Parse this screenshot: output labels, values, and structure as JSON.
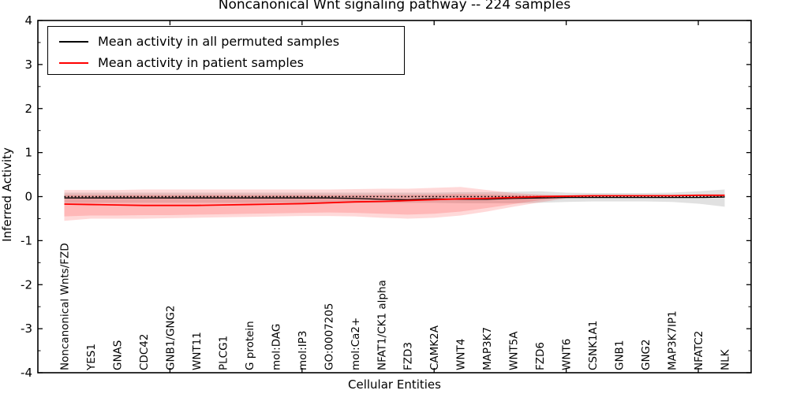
{
  "chart_data": {
    "type": "line",
    "title": "Noncanonical Wnt signaling pathway -- 224 samples",
    "xlabel": "Cellular Entities",
    "ylabel": "Inferred Activity",
    "xlim": [
      0,
      27
    ],
    "ylim": [
      -4,
      4
    ],
    "grid": false,
    "legend_position": "upper left",
    "yticks": [
      4,
      3,
      2,
      1,
      0,
      -1,
      -2,
      -3,
      -4
    ],
    "ytick_labels": [
      "4",
      "3",
      "2",
      "1",
      "0",
      "-1",
      "-2",
      "-3",
      "-4"
    ],
    "xticks": [
      5,
      10,
      15,
      20,
      25
    ],
    "categories": [
      "Noncanonical Wnts/FZD",
      "YES1",
      "GNAS",
      "CDC42",
      "GNB1/GNG2",
      "WNT11",
      "PLCG1",
      "G protein",
      "mol:DAG",
      "mol:IP3",
      "GO:0007205",
      "mol:Ca2+",
      "NFAT1/CK1 alpha",
      "FZD3",
      "CAMK2A",
      "WNT4",
      "MAP3K7",
      "WNT5A",
      "FZD6",
      "WNT6",
      "CSNK1A1",
      "GNB1",
      "GNG2",
      "MAP3K7IP1",
      "NFATC2",
      "NLK"
    ],
    "x": [
      1,
      2,
      3,
      4,
      5,
      6,
      7,
      8,
      9,
      10,
      11,
      12,
      13,
      14,
      15,
      16,
      17,
      18,
      19,
      20,
      21,
      22,
      23,
      24,
      25,
      26
    ],
    "zero_line": {
      "y": 0,
      "style": "dotted",
      "color": "#000000"
    },
    "series": [
      {
        "name": "Mean activity in all permuted samples",
        "color": "#000000",
        "values": [
          -0.03,
          -0.03,
          -0.03,
          -0.03,
          -0.03,
          -0.03,
          -0.03,
          -0.03,
          -0.03,
          -0.03,
          -0.03,
          -0.04,
          -0.06,
          -0.07,
          -0.05,
          -0.06,
          -0.06,
          -0.04,
          -0.03,
          -0.02,
          -0.02,
          -0.02,
          -0.02,
          -0.02,
          -0.02,
          -0.01
        ]
      },
      {
        "name": "Mean activity in patient samples",
        "color": "#ff0000",
        "values": [
          -0.17,
          -0.18,
          -0.19,
          -0.2,
          -0.2,
          -0.2,
          -0.19,
          -0.18,
          -0.17,
          -0.16,
          -0.14,
          -0.12,
          -0.11,
          -0.09,
          -0.07,
          -0.05,
          -0.04,
          -0.02,
          0.0,
          0.01,
          0.02,
          0.02,
          0.02,
          0.02,
          0.03,
          0.03
        ]
      }
    ],
    "bands": [
      {
        "name": "permuted-std-band",
        "color": "#888888",
        "opacity": 0.25,
        "top": [
          0.09,
          0.09,
          0.09,
          0.09,
          0.09,
          0.09,
          0.09,
          0.09,
          0.09,
          0.09,
          0.09,
          0.09,
          0.09,
          0.09,
          0.09,
          0.1,
          0.1,
          0.11,
          0.12,
          0.09,
          0.08,
          0.08,
          0.08,
          0.09,
          0.12,
          0.16
        ],
        "bottom": [
          -0.14,
          -0.14,
          -0.14,
          -0.14,
          -0.14,
          -0.14,
          -0.14,
          -0.14,
          -0.14,
          -0.14,
          -0.14,
          -0.14,
          -0.14,
          -0.14,
          -0.14,
          -0.15,
          -0.15,
          -0.15,
          -0.14,
          -0.12,
          -0.11,
          -0.11,
          -0.11,
          -0.12,
          -0.16,
          -0.23
        ]
      },
      {
        "name": "patient-band-outer",
        "color": "#ff0000",
        "opacity": 0.15,
        "top": [
          0.15,
          0.15,
          0.15,
          0.16,
          0.16,
          0.16,
          0.16,
          0.16,
          0.16,
          0.16,
          0.16,
          0.17,
          0.18,
          0.18,
          0.2,
          0.22,
          0.15,
          0.08,
          0.05,
          0.03,
          0.03,
          0.03,
          0.03,
          0.03,
          0.04,
          0.04
        ],
        "bottom": [
          -0.55,
          -0.5,
          -0.5,
          -0.5,
          -0.49,
          -0.48,
          -0.47,
          -0.46,
          -0.45,
          -0.44,
          -0.44,
          -0.45,
          -0.48,
          -0.5,
          -0.48,
          -0.43,
          -0.34,
          -0.23,
          -0.13,
          -0.04,
          -0.01,
          0.0,
          0.0,
          0.0,
          0.01,
          0.01
        ]
      },
      {
        "name": "patient-band-inner",
        "color": "#ff0000",
        "opacity": 0.15,
        "top": [
          0.04,
          0.04,
          0.04,
          0.04,
          0.04,
          0.04,
          0.04,
          0.04,
          0.04,
          0.04,
          0.04,
          0.04,
          0.04,
          0.04,
          0.05,
          0.06,
          0.05,
          0.04,
          0.03,
          0.02,
          0.03,
          0.03,
          0.03,
          0.03,
          0.03,
          0.04
        ],
        "bottom": [
          -0.45,
          -0.43,
          -0.43,
          -0.42,
          -0.42,
          -0.41,
          -0.4,
          -0.39,
          -0.38,
          -0.37,
          -0.36,
          -0.37,
          -0.39,
          -0.41,
          -0.39,
          -0.34,
          -0.26,
          -0.17,
          -0.08,
          -0.02,
          0.0,
          0.01,
          0.01,
          0.01,
          0.02,
          0.02
        ]
      }
    ]
  }
}
